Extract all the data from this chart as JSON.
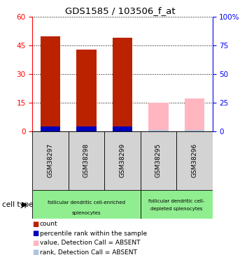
{
  "title": "GDS1585 / 103506_f_at",
  "samples": [
    "GSM38297",
    "GSM38298",
    "GSM38299",
    "GSM38295",
    "GSM38296"
  ],
  "count_values": [
    50,
    43,
    49,
    0,
    0
  ],
  "rank_values": [
    2.5,
    2.5,
    2.5,
    0,
    0
  ],
  "absent_value_values": [
    0,
    0,
    0,
    15,
    17
  ],
  "absent_rank_values": [
    0,
    0,
    0,
    0.5,
    0.5
  ],
  "ylim_left": [
    0,
    60
  ],
  "ylim_right": [
    0,
    100
  ],
  "yticks_left": [
    0,
    15,
    30,
    45,
    60
  ],
  "yticks_right": [
    0,
    25,
    50,
    75,
    100
  ],
  "bar_width": 0.55,
  "color_count": "#BB2200",
  "color_rank": "#0000BB",
  "color_absent_value": "#FFB6C1",
  "color_absent_rank": "#B0C4DE",
  "bg_sample": "#d3d3d3",
  "color_green": "#90EE90",
  "legend_items": [
    {
      "color": "#BB2200",
      "label": "count"
    },
    {
      "color": "#0000BB",
      "label": "percentile rank within the sample"
    },
    {
      "color": "#FFB6C1",
      "label": "value, Detection Call = ABSENT"
    },
    {
      "color": "#B0C4DE",
      "label": "rank, Detection Call = ABSENT"
    }
  ]
}
